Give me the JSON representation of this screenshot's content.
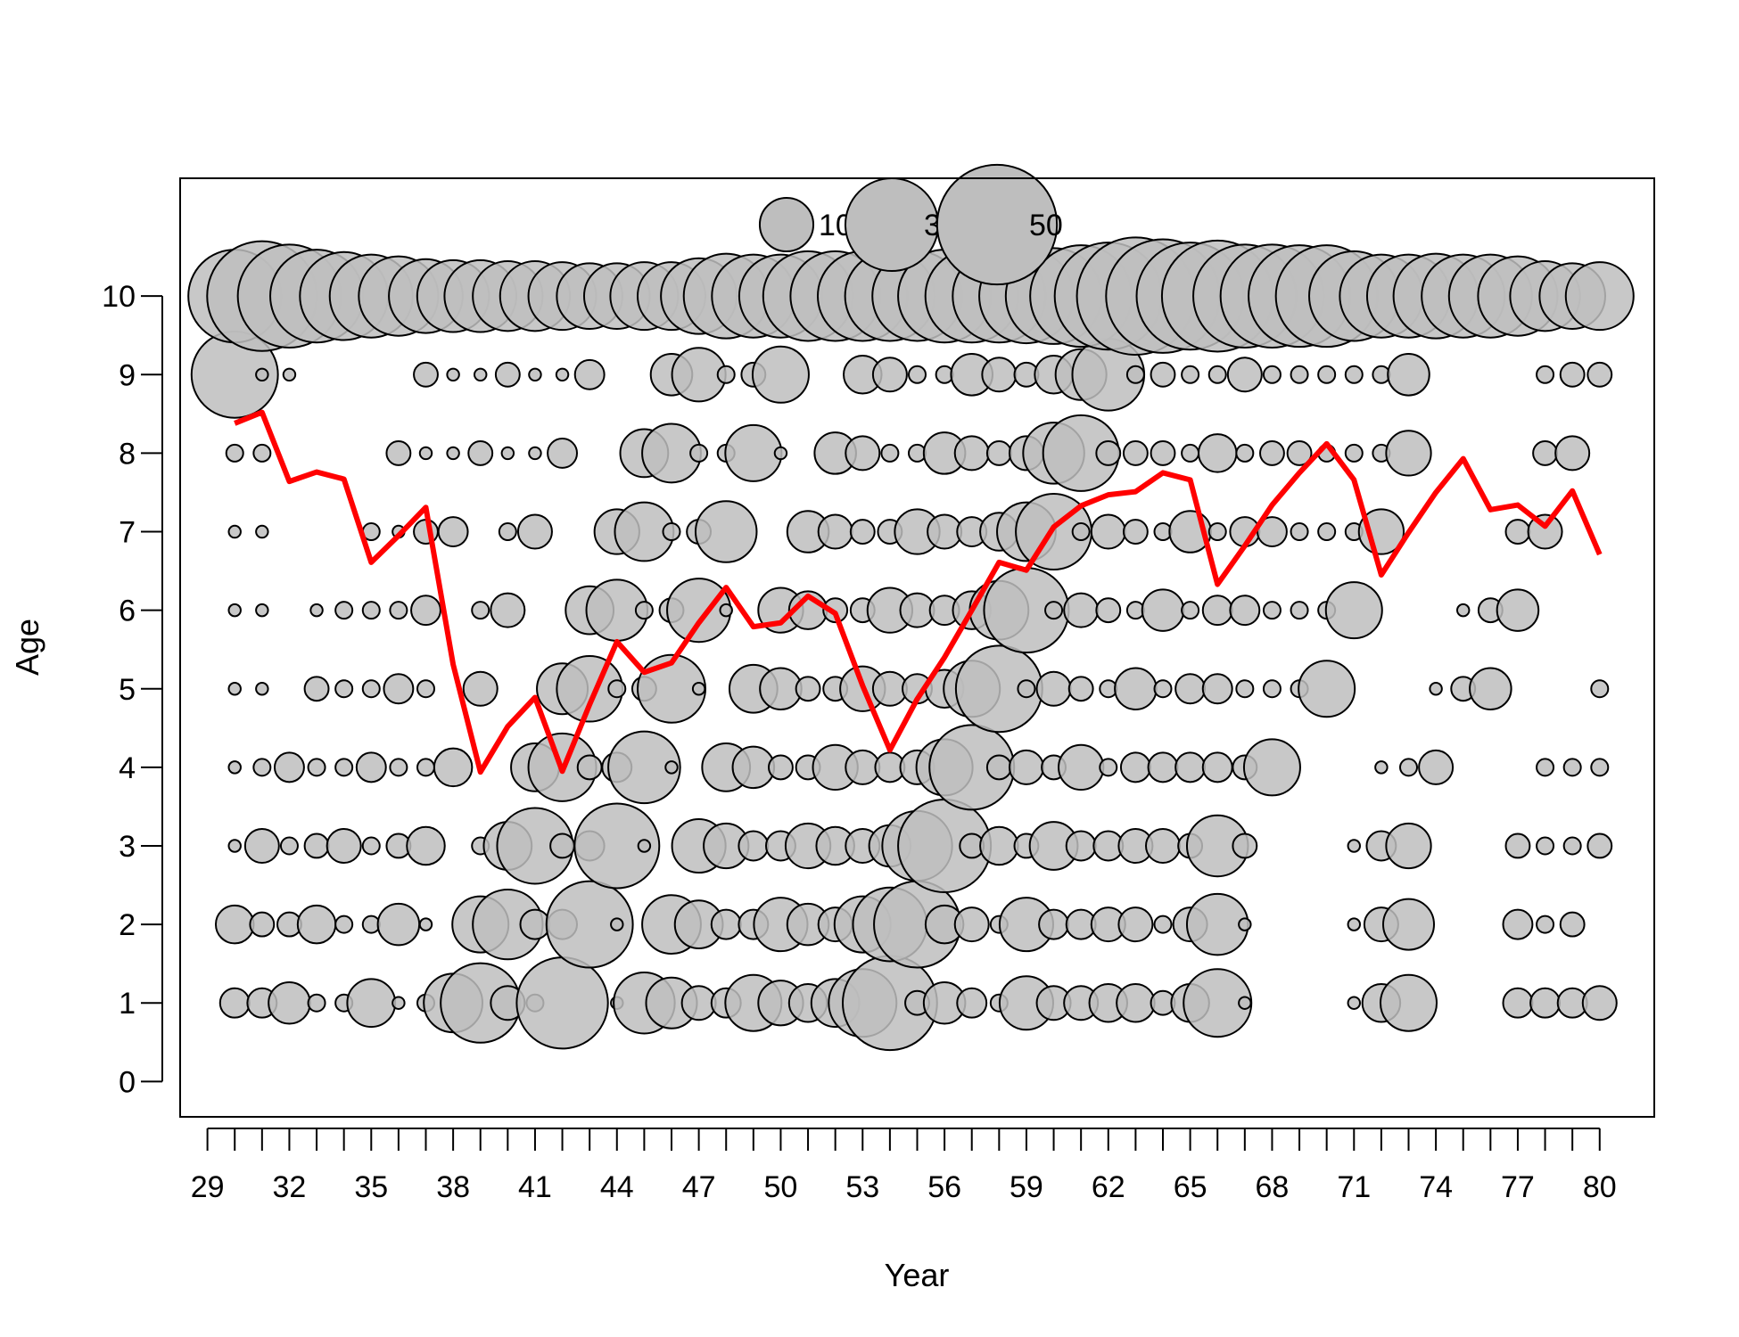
{
  "chart_data": {
    "type": "scatter",
    "subtype": "bubble",
    "title": "",
    "xlabel": "Year",
    "ylabel": "Age",
    "x_ticks": [
      29,
      32,
      35,
      38,
      41,
      44,
      47,
      50,
      53,
      56,
      59,
      62,
      65,
      68,
      71,
      74,
      77,
      80
    ],
    "x_tick_labels": [
      "29",
      "32",
      "35",
      "38",
      "41",
      "44",
      "47",
      "50",
      "53",
      "56",
      "59",
      "62",
      "65",
      "68",
      "71",
      "74",
      "77",
      "80"
    ],
    "y_ticks": [
      0,
      1,
      2,
      3,
      4,
      5,
      6,
      7,
      8,
      9,
      10
    ],
    "y_tick_labels": [
      "0",
      "1",
      "2",
      "3",
      "4",
      "5",
      "6",
      "7",
      "8",
      "9",
      "10"
    ],
    "xlim": [
      28,
      82
    ],
    "ylim": [
      -0.45,
      11.5
    ],
    "grid": false,
    "legend": {
      "placement": "top-center",
      "entries": [
        {
          "label": "10",
          "value": 10
        },
        {
          "label": "30",
          "value": 30
        },
        {
          "label": "50",
          "value": 50
        }
      ]
    },
    "bubble_fill": "#bebebe",
    "bubble_stroke": "#000000",
    "mean_age_color": "#ff0000",
    "years": [
      30,
      31,
      32,
      33,
      34,
      35,
      36,
      37,
      38,
      39,
      40,
      41,
      42,
      43,
      44,
      45,
      46,
      47,
      48,
      49,
      50,
      51,
      52,
      53,
      54,
      55,
      56,
      57,
      58,
      59,
      60,
      61,
      62,
      63,
      64,
      65,
      66,
      67,
      68,
      69,
      70,
      71,
      72,
      73,
      74,
      75,
      76,
      77,
      78,
      79,
      80
    ],
    "bubbles_by_age": [
      {
        "age": 1,
        "values": [
          3,
          3,
          6,
          1,
          1,
          8,
          0.5,
          1,
          12,
          22,
          4,
          1,
          29,
          0,
          0.5,
          13,
          9,
          4,
          3,
          11,
          7,
          5,
          8,
          16,
          31,
          2,
          6,
          3,
          1,
          10,
          4,
          4,
          5,
          5,
          2,
          5,
          16,
          0.5,
          0,
          0,
          0,
          0.5,
          5,
          11,
          0,
          0,
          0,
          3,
          3,
          3,
          4
        ]
      },
      {
        "age": 2,
        "values": [
          5,
          2,
          2,
          5,
          1,
          1,
          6,
          0.5,
          0,
          11,
          17,
          3,
          3,
          26,
          0.5,
          0,
          12,
          8,
          3,
          3,
          10,
          6,
          4,
          11,
          19,
          26,
          5,
          4,
          1,
          10,
          3,
          3,
          4,
          4,
          1,
          4,
          13,
          0.5,
          0,
          0,
          0,
          0.5,
          4,
          9,
          0,
          0,
          0,
          3,
          1,
          2,
          0
        ]
      },
      {
        "age": 3,
        "values": [
          0.5,
          4,
          1,
          2,
          4,
          1,
          2,
          5,
          0,
          1,
          8,
          20,
          2,
          3,
          25,
          0.5,
          0,
          10,
          7,
          3,
          3,
          7,
          5,
          4,
          6,
          17,
          30,
          2,
          5,
          2,
          8,
          3,
          3,
          4,
          4,
          2,
          13,
          2,
          0,
          0,
          0,
          0.5,
          3,
          7,
          0,
          0,
          0,
          2,
          1,
          1,
          2
        ]
      },
      {
        "age": 4,
        "values": [
          0.5,
          1,
          3,
          1,
          1,
          3,
          1,
          1,
          5,
          0,
          0,
          8,
          16,
          2,
          3,
          18,
          0.5,
          0,
          8,
          6,
          2,
          2,
          7,
          4,
          3,
          4,
          11,
          25,
          2,
          4,
          2,
          7,
          1,
          3,
          3,
          3,
          3,
          2,
          11,
          0,
          0,
          0,
          0.5,
          1,
          4,
          0,
          0,
          0,
          1,
          1,
          1
        ]
      },
      {
        "age": 5,
        "values": [
          0.5,
          0.5,
          0,
          2,
          1,
          1,
          3,
          1,
          0,
          4,
          0,
          0,
          9,
          15,
          1,
          2,
          16,
          0.5,
          0,
          8,
          6,
          2,
          2,
          7,
          4,
          3,
          5,
          11,
          26,
          1,
          4,
          2,
          1,
          6,
          1,
          3,
          3,
          1,
          1,
          1,
          11,
          0,
          0,
          0,
          0.5,
          2,
          6,
          0,
          0,
          0,
          1
        ]
      },
      {
        "age": 6,
        "values": [
          0.5,
          0.5,
          0,
          0.5,
          1,
          1,
          1,
          3,
          0,
          1,
          4,
          0,
          0,
          8,
          13,
          1,
          2,
          14,
          0.5,
          0,
          7,
          5,
          2,
          2,
          7,
          4,
          3,
          5,
          12,
          25,
          1,
          4,
          2,
          1,
          6,
          1,
          3,
          3,
          1,
          1,
          1,
          11,
          0,
          0,
          0,
          0.5,
          2,
          6,
          0,
          0,
          0
        ]
      },
      {
        "age": 7,
        "values": [
          0.5,
          0.5,
          0,
          0,
          0,
          1,
          0.5,
          2,
          3,
          0,
          1,
          4,
          0,
          0,
          7,
          12,
          1,
          2,
          13,
          0,
          0,
          6,
          4,
          2,
          2,
          7,
          4,
          3,
          5,
          12,
          20,
          1,
          4,
          2,
          1,
          6,
          1,
          3,
          3,
          1,
          1,
          1,
          7,
          0,
          0,
          0,
          0,
          2,
          4,
          0,
          0
        ]
      },
      {
        "age": 8,
        "values": [
          1,
          1,
          0,
          0,
          0,
          0,
          2,
          0.5,
          0.5,
          2,
          0.5,
          0.5,
          3,
          0,
          0,
          8,
          12,
          1,
          1,
          11,
          0.5,
          0,
          6,
          4,
          1,
          1,
          6,
          4,
          2,
          4,
          13,
          20,
          2,
          2,
          2,
          1,
          5,
          1,
          2,
          2,
          1,
          1,
          1,
          7,
          0,
          0,
          0,
          0,
          2,
          4,
          0
        ]
      },
      {
        "age": 9,
        "values": [
          26,
          0.5,
          0.5,
          0,
          0,
          0,
          0,
          2,
          0.5,
          0.5,
          2,
          0.5,
          0.5,
          3,
          0,
          0,
          6,
          10,
          1,
          2,
          11,
          0,
          0,
          5,
          4,
          1,
          1,
          6,
          4,
          2,
          5,
          9,
          18,
          1,
          2,
          1,
          1,
          4,
          1,
          1,
          1,
          1,
          1,
          6,
          0,
          0,
          0,
          0,
          1,
          2,
          2
        ]
      },
      {
        "age": 10,
        "values": [
          30,
          42,
          37,
          30,
          27,
          24,
          22,
          19,
          18,
          18,
          17,
          17,
          16,
          15,
          15,
          16,
          16,
          20,
          25,
          24,
          24,
          28,
          28,
          28,
          28,
          28,
          30,
          30,
          30,
          31,
          32,
          36,
          40,
          48,
          45,
          40,
          43,
          37,
          37,
          36,
          36,
          28,
          24,
          24,
          25,
          24,
          24,
          22,
          17,
          15,
          16
        ]
      }
    ],
    "series": [
      {
        "name": "",
        "type": "line",
        "x": [
          30,
          31,
          32,
          33,
          34,
          35,
          36,
          37,
          38,
          39,
          40,
          41,
          42,
          43,
          44,
          45,
          46,
          47,
          48,
          49,
          50,
          51,
          52,
          53,
          54,
          55,
          56,
          57,
          58,
          59,
          60,
          61,
          62,
          63,
          64,
          65,
          66,
          67,
          68,
          69,
          70,
          71,
          72,
          73,
          74,
          75,
          76,
          77,
          78,
          79,
          80
        ],
        "y": [
          8.38,
          8.52,
          7.64,
          7.76,
          7.67,
          6.61,
          6.95,
          7.31,
          5.31,
          3.94,
          4.52,
          4.89,
          3.95,
          4.8,
          5.6,
          5.21,
          5.33,
          5.84,
          6.29,
          5.79,
          5.84,
          6.18,
          5.96,
          5.04,
          4.22,
          4.87,
          5.4,
          6.0,
          6.61,
          6.51,
          7.06,
          7.33,
          7.47,
          7.51,
          7.75,
          7.66,
          6.33,
          6.82,
          7.34,
          7.75,
          8.12,
          7.66,
          6.45,
          6.99,
          7.5,
          7.93,
          7.28,
          7.34,
          7.07,
          7.52,
          6.71
        ]
      }
    ]
  }
}
